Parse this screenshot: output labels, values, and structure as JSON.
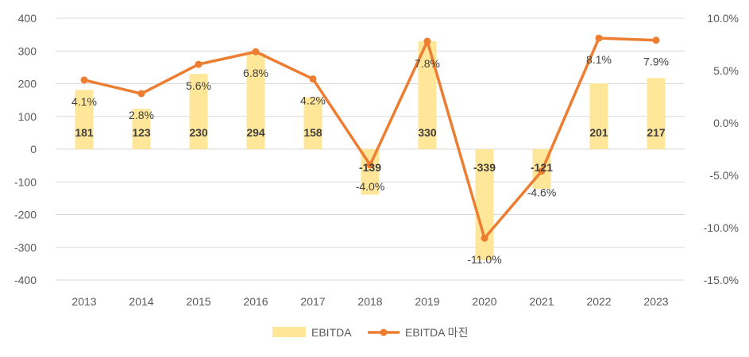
{
  "chart_data": {
    "type": "bar+line",
    "categories": [
      "2013",
      "2014",
      "2015",
      "2016",
      "2017",
      "2018",
      "2019",
      "2020",
      "2021",
      "2022",
      "2023"
    ],
    "series": [
      {
        "name": "EBITDA",
        "type": "bar",
        "axis": "left",
        "color": "#FFE699",
        "values": [
          181,
          123,
          230,
          294,
          158,
          -139,
          330,
          -339,
          -121,
          201,
          217
        ],
        "labels": [
          "181",
          "123",
          "230",
          "294",
          "158",
          "-139",
          "330",
          "-339",
          "-121",
          "201",
          "217"
        ]
      },
      {
        "name": "EBITDA 마진",
        "type": "line",
        "axis": "right",
        "color": "#ED7D31",
        "values": [
          4.1,
          2.8,
          5.6,
          6.8,
          4.2,
          -4.0,
          7.8,
          -11.0,
          -4.6,
          8.1,
          7.9
        ],
        "labels": [
          "4.1%",
          "2.8%",
          "5.6%",
          "6.8%",
          "4.2%",
          "-4.0%",
          "7.8%",
          "-11.0%",
          "-4.6%",
          "8.1%",
          "7.9%"
        ]
      }
    ],
    "left_axis": {
      "ylim": [
        -400,
        400
      ],
      "ticks": [
        400,
        300,
        200,
        100,
        0,
        -100,
        -200,
        -300,
        -400
      ],
      "tick_labels": [
        "400",
        "300",
        "200",
        "100",
        "0",
        "-100",
        "-200",
        "-300",
        "-400"
      ]
    },
    "right_axis": {
      "ylim": [
        -15,
        10
      ],
      "ticks": [
        10,
        5,
        0,
        -5,
        -10,
        -15
      ],
      "tick_labels": [
        "10.0%",
        "5.0%",
        "0.0%",
        "-5.0%",
        "-10.0%",
        "-15.0%"
      ]
    },
    "grid": true,
    "legend": {
      "position": "bottom",
      "items": [
        {
          "label": "EBITDA",
          "marker": "bar",
          "color": "#FFE699"
        },
        {
          "label": "EBITDA 마진",
          "marker": "line",
          "color": "#ED7D31"
        }
      ]
    },
    "title": "",
    "xlabel": "",
    "ylabel": ""
  }
}
